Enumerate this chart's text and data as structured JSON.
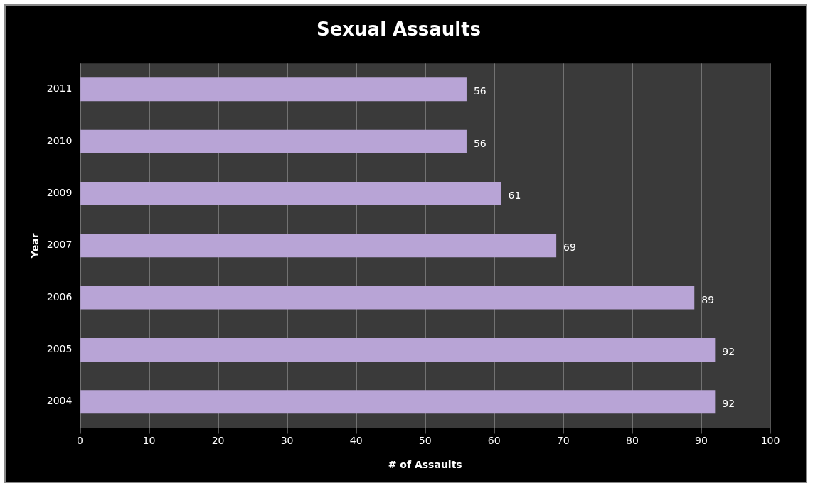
{
  "chart_data": {
    "type": "bar",
    "orientation": "horizontal",
    "title": "Sexual Assaults",
    "xlabel": "# of Assaults",
    "ylabel": "Year",
    "categories": [
      "2011",
      "2010",
      "2009",
      "2007",
      "2006",
      "2005",
      "2004"
    ],
    "values": [
      56,
      56,
      61,
      69,
      89,
      92,
      92
    ],
    "color": "#b8a4d6",
    "xlim": [
      0,
      100
    ],
    "xticks": [
      0,
      10,
      20,
      30,
      40,
      50,
      60,
      70,
      80,
      90,
      100
    ],
    "grid": "x",
    "data_labels": true
  }
}
